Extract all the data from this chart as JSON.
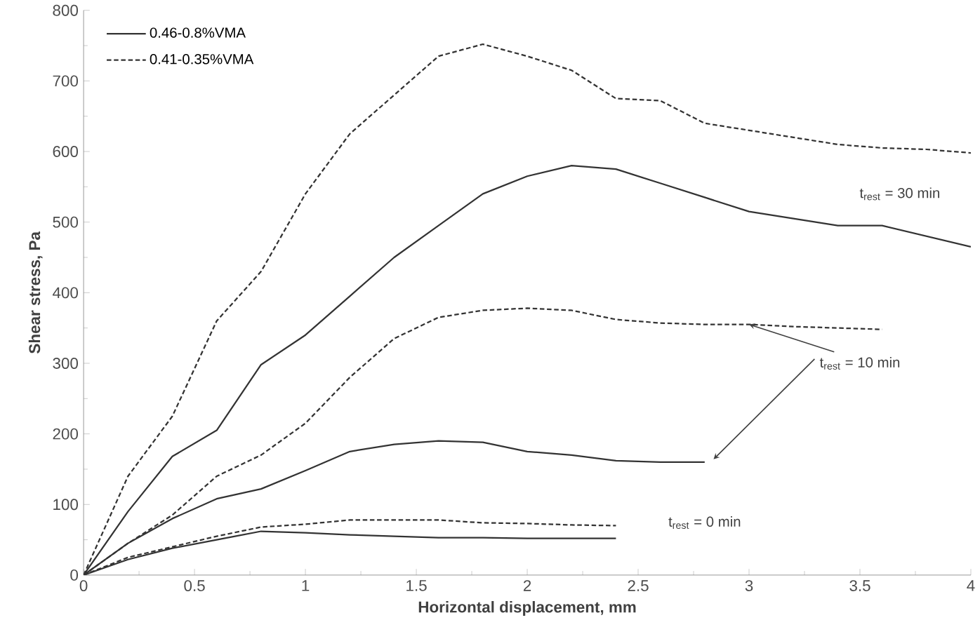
{
  "chart_data": {
    "type": "line",
    "xlabel": "Horizontal displacement, mm",
    "ylabel": "Shear stress, Pa",
    "xlim": [
      0,
      4
    ],
    "xticks": [
      0,
      0.5,
      1,
      1.5,
      2,
      2.5,
      3,
      3.5,
      4
    ],
    "ylim": [
      0,
      800
    ],
    "yticks": [
      0,
      100,
      200,
      300,
      400,
      500,
      600,
      700,
      800
    ],
    "grid": false,
    "legend": "top left",
    "marker": "none",
    "series": [
      {
        "name": "0.46-0.8%VMA",
        "color": "#333333",
        "line_style": "solid",
        "x": [
          0,
          0.2,
          0.4,
          0.6,
          0.8,
          1.0,
          1.2,
          1.4,
          1.6,
          1.8,
          2.0,
          2.2,
          2.4,
          2.6,
          2.8,
          3.0,
          3.2,
          3.4,
          3.6,
          3.8,
          4.0
        ],
        "values": [
          0,
          90,
          168,
          205,
          298,
          340,
          395,
          450,
          495,
          540,
          565,
          580,
          575,
          555,
          535,
          515,
          505,
          495,
          495,
          480,
          465
        ]
      },
      {
        "name": "0.41-0.35%VMA",
        "color": "#333333",
        "line_style": "dashed",
        "x": [
          0,
          0.2,
          0.4,
          0.6,
          0.8,
          1.0,
          1.2,
          1.4,
          1.6,
          1.8,
          2.0,
          2.2,
          2.4,
          2.6,
          2.8,
          3.0,
          3.2,
          3.4,
          3.6,
          3.8,
          4.0
        ],
        "values": [
          0,
          140,
          225,
          360,
          430,
          540,
          625,
          680,
          735,
          752,
          735,
          715,
          675,
          672,
          640,
          630,
          620,
          610,
          605,
          603,
          598
        ]
      },
      {
        "color": "#333333",
        "line_style": "solid",
        "x": [
          0,
          0.2,
          0.4,
          0.6,
          0.8,
          1.0,
          1.2,
          1.4,
          1.6,
          1.8,
          2.0,
          2.2,
          2.4,
          2.6,
          2.8
        ],
        "values": [
          0,
          45,
          80,
          108,
          122,
          148,
          175,
          185,
          190,
          188,
          175,
          170,
          162,
          160,
          160
        ]
      },
      {
        "color": "#333333",
        "line_style": "dashed",
        "x": [
          0,
          0.2,
          0.4,
          0.6,
          0.8,
          1.0,
          1.2,
          1.4,
          1.6,
          1.8,
          2.0,
          2.2,
          2.4,
          2.6,
          2.8,
          3.0,
          3.2,
          3.4,
          3.6
        ],
        "values": [
          0,
          45,
          85,
          140,
          170,
          215,
          280,
          335,
          365,
          375,
          378,
          375,
          362,
          357,
          355,
          355,
          352,
          350,
          348
        ]
      },
      {
        "color": "#333333",
        "line_style": "solid",
        "x": [
          0,
          0.2,
          0.4,
          0.6,
          0.8,
          1.0,
          1.2,
          1.4,
          1.6,
          1.8,
          2.0,
          2.2,
          2.4
        ],
        "values": [
          0,
          22,
          38,
          50,
          62,
          60,
          57,
          55,
          53,
          53,
          52,
          52,
          52
        ]
      },
      {
        "color": "#333333",
        "line_style": "dashed",
        "x": [
          0,
          0.2,
          0.4,
          0.6,
          0.8,
          1.0,
          1.2,
          1.4,
          1.6,
          1.8,
          2.0,
          2.2,
          2.4
        ],
        "values": [
          0,
          25,
          40,
          55,
          68,
          72,
          78,
          78,
          78,
          74,
          73,
          71,
          70
        ]
      }
    ],
    "annotations": [
      "t$_{rest}$ = 30 min",
      {
        "text": "t$_{rest}$ = 10 min",
        "x": 3.0,
        "y": 355
      },
      "t$_{rest}$ = 0 min"
    ]
  }
}
